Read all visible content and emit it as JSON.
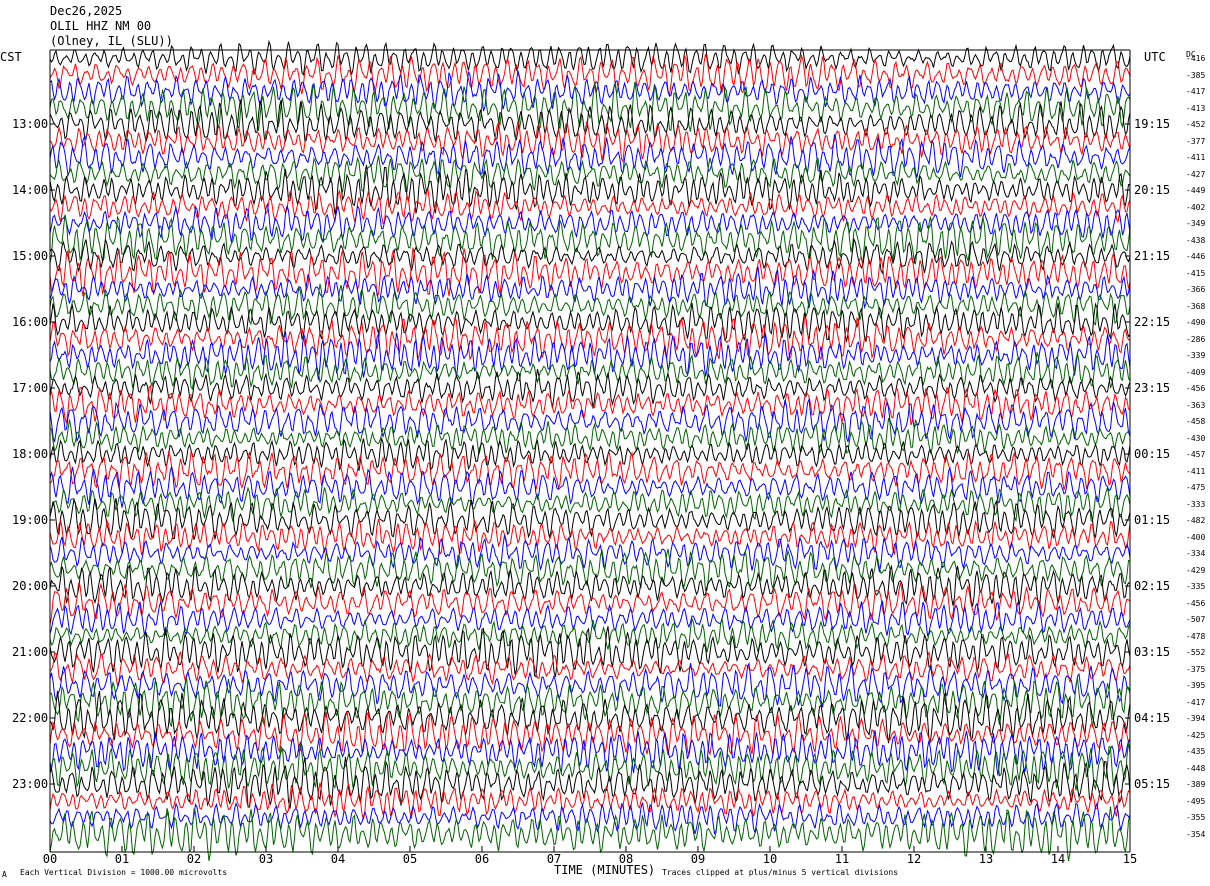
{
  "header": {
    "date": "Dec26,2025",
    "station": "OLIL HHZ NM 00",
    "location": "(Olney, IL (SLU))"
  },
  "left_tz": "CST",
  "right_tz": "UTC",
  "dc_heading": "DC",
  "footer": {
    "left_note": "Each Vertical Division = 1000.00 microvolts",
    "corner_mark": "A",
    "xlabel": "TIME (MINUTES)",
    "right_note": "Traces clipped at plus/minus 5 vertical divisions"
  },
  "colors": {
    "trace_cycle": [
      "#000000",
      "#ff0000",
      "#0000ff",
      "#006400"
    ]
  },
  "chart_data": {
    "type": "line",
    "description_kind": "helicorder",
    "xlabel": "TIME (MINUTES)",
    "xlim": [
      0,
      15
    ],
    "x_ticks": [
      "00",
      "01",
      "02",
      "03",
      "04",
      "05",
      "06",
      "07",
      "08",
      "09",
      "10",
      "11",
      "12",
      "13",
      "14",
      "15"
    ],
    "rows_per_hour": 4,
    "left_hour_labels": [
      "13:00",
      "14:00",
      "15:00",
      "16:00",
      "17:00",
      "18:00",
      "19:00",
      "20:00",
      "21:00",
      "22:00",
      "23:00"
    ],
    "right_hour_labels": [
      "19:15",
      "20:15",
      "21:15",
      "22:15",
      "23:15",
      "00:15",
      "01:15",
      "02:15",
      "03:15",
      "04:15",
      "05:15"
    ],
    "dc_offsets": [
      "-416",
      "-385",
      "-417",
      "-413",
      "-452",
      "-377",
      "-411",
      "-427",
      "-449",
      "-402",
      "-349",
      "-438",
      "-446",
      "-415",
      "-366",
      "-368",
      "-490",
      "-286",
      "-339",
      "-409",
      "-456",
      "-363",
      "-458",
      "-430",
      "-457",
      "-411",
      "-475",
      "-333",
      "-482",
      "-400",
      "-334",
      "-429",
      "-335",
      "-456",
      "-507",
      "-478",
      "-552",
      "-375",
      "-395",
      "-417",
      "-394",
      "-425",
      "-435",
      "-448",
      "-389",
      "-495",
      "-355",
      "-354"
    ],
    "clip_divisions": 5,
    "vertical_division_microvolts": 1000.0
  }
}
